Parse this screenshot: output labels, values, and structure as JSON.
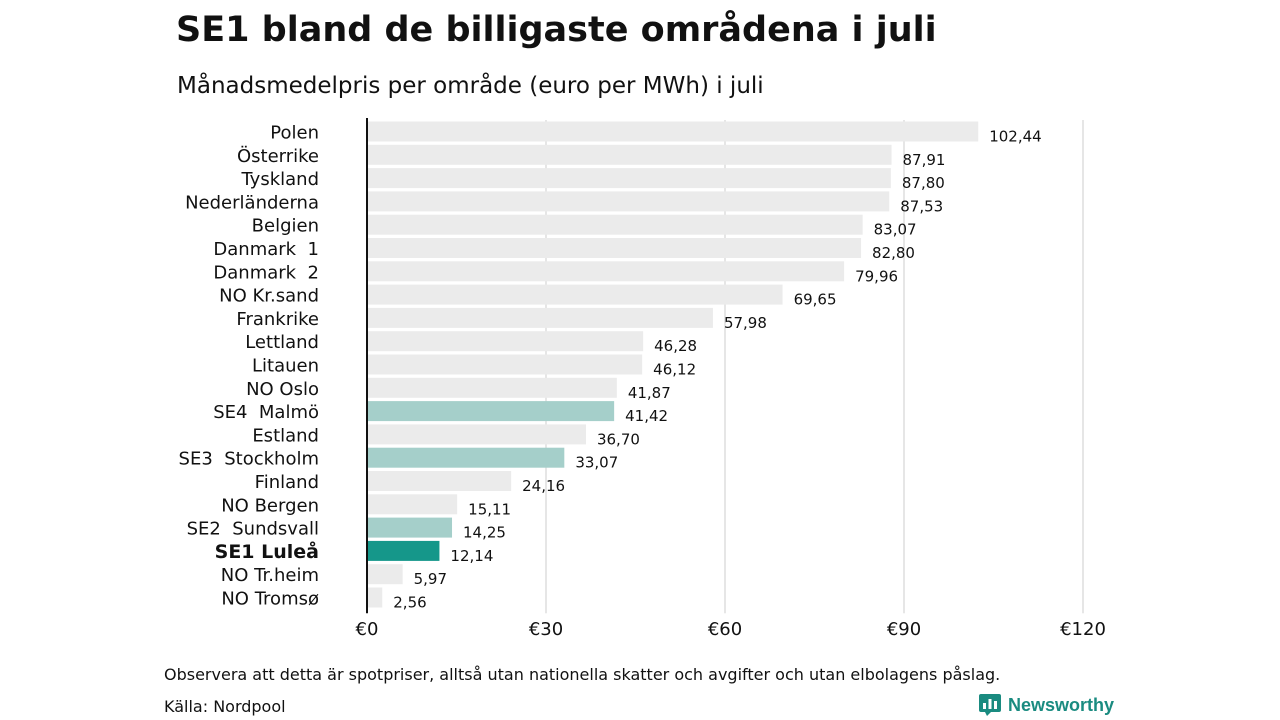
{
  "header": {
    "title": "SE1 bland de billigaste områdena i juli",
    "subtitle": "Månadsmedelpris per område (euro per MWh) i juli"
  },
  "footer": {
    "note": "Observera att detta är spotpriser, alltså utan nationella skatter och avgifter och utan elbolagens påslag.",
    "source": "Källa: Nordpool"
  },
  "brand": {
    "name": "Newsworthy",
    "icon": "newsworthy-logo-icon",
    "color": "#1a8b80"
  },
  "colors": {
    "default_bar": "#ebebeb",
    "se_bar": "#a5cfca",
    "highlight_bar": "#15978a",
    "grid": "#cccccc",
    "axis": "#111111"
  },
  "chart_data": {
    "type": "bar",
    "orientation": "horizontal",
    "title": "SE1 bland de billigaste områdena i juli",
    "subtitle": "Månadsmedelpris per område (euro per MWh) i juli",
    "xlim": [
      0,
      120
    ],
    "x_ticks": [
      0,
      30,
      60,
      90,
      120
    ],
    "x_tick_labels": [
      "€0",
      "€30",
      "€60",
      "€90",
      "€120"
    ],
    "grid": "vertical",
    "categories": [
      "Polen",
      "Österrike",
      "Tyskland",
      "Nederländerna",
      "Belgien",
      "Danmark  1",
      "Danmark  2",
      "NO Kr.sand",
      "Frankrike",
      "Lettland",
      "Litauen",
      "NO Oslo",
      "SE4  Malmö",
      "Estland",
      "SE3  Stockholm",
      "Finland",
      "NO Bergen",
      "SE2  Sundsvall",
      "SE1 Luleå",
      "NO Tr.heim",
      "NO Tromsø"
    ],
    "values": [
      102.44,
      87.91,
      87.8,
      87.53,
      83.07,
      82.8,
      79.96,
      69.65,
      57.98,
      46.28,
      46.12,
      41.87,
      41.42,
      36.7,
      33.07,
      24.16,
      15.11,
      14.25,
      12.14,
      5.97,
      2.56
    ],
    "value_labels": [
      "102,44",
      "87,91",
      "87,80",
      "87,53",
      "83,07",
      "82,80",
      "79,96",
      "69,65",
      "57,98",
      "46,28",
      "46,12",
      "41,87",
      "41,42",
      "36,70",
      "33,07",
      "24,16",
      "15,11",
      "14,25",
      "12,14",
      "5,97",
      "2,56"
    ],
    "swedish_areas": [
      "SE4  Malmö",
      "SE3  Stockholm",
      "SE2  Sundsvall"
    ],
    "highlight": "SE1 Luleå"
  }
}
